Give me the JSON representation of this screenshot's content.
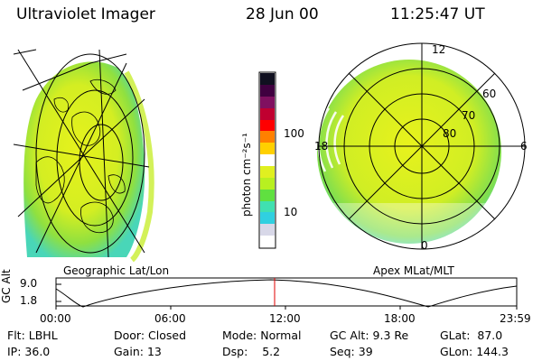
{
  "header": {
    "instrument": "Ultraviolet Imager",
    "date": "28 Jun 00",
    "time": "11:25:47 UT"
  },
  "colorbar": {
    "unit_label": "photon cm⁻²s⁻¹",
    "ticks": [
      "100",
      "10"
    ],
    "colors": [
      "#ffffff",
      "#d8d8e8",
      "#30d0e0",
      "#40e0b0",
      "#60e040",
      "#b8f020",
      "#e0f020",
      "#ffffff",
      "#ffd000",
      "#ff8000",
      "#ff0000",
      "#c00030",
      "#801060",
      "#400040",
      "#101020"
    ]
  },
  "left_map": {
    "label": "Geographic Lat/Lon"
  },
  "right_map": {
    "label": "Apex MLat/MLT",
    "mlt_labels": {
      "top": "12",
      "left": "18",
      "right": "6",
      "bottom": "0"
    },
    "lat_labels": [
      "60",
      "70",
      "80"
    ]
  },
  "timeline": {
    "y_axis_label": "GC Alt",
    "y_ticks": [
      "9.0",
      "1.8"
    ],
    "x_ticks": [
      "00:00",
      "06:00",
      "12:00",
      "18:00",
      "23:59"
    ]
  },
  "info": {
    "row1": [
      {
        "label": "Flt:",
        "value": "LBHL"
      },
      {
        "label": "Door:",
        "value": "Closed"
      },
      {
        "label": "Mode:",
        "value": "Normal"
      },
      {
        "label": "GC Alt:",
        "value": "9.3 Re"
      },
      {
        "label": "GLat:",
        "value": "87.0"
      }
    ],
    "row2": [
      {
        "label": "IP:",
        "value": "36.0"
      },
      {
        "label": "Gain:",
        "value": "13"
      },
      {
        "label": "Dsp:",
        "value": "5.2"
      },
      {
        "label": "Seq:",
        "value": "39"
      },
      {
        "label": "GLon:",
        "value": "144.3"
      }
    ]
  }
}
